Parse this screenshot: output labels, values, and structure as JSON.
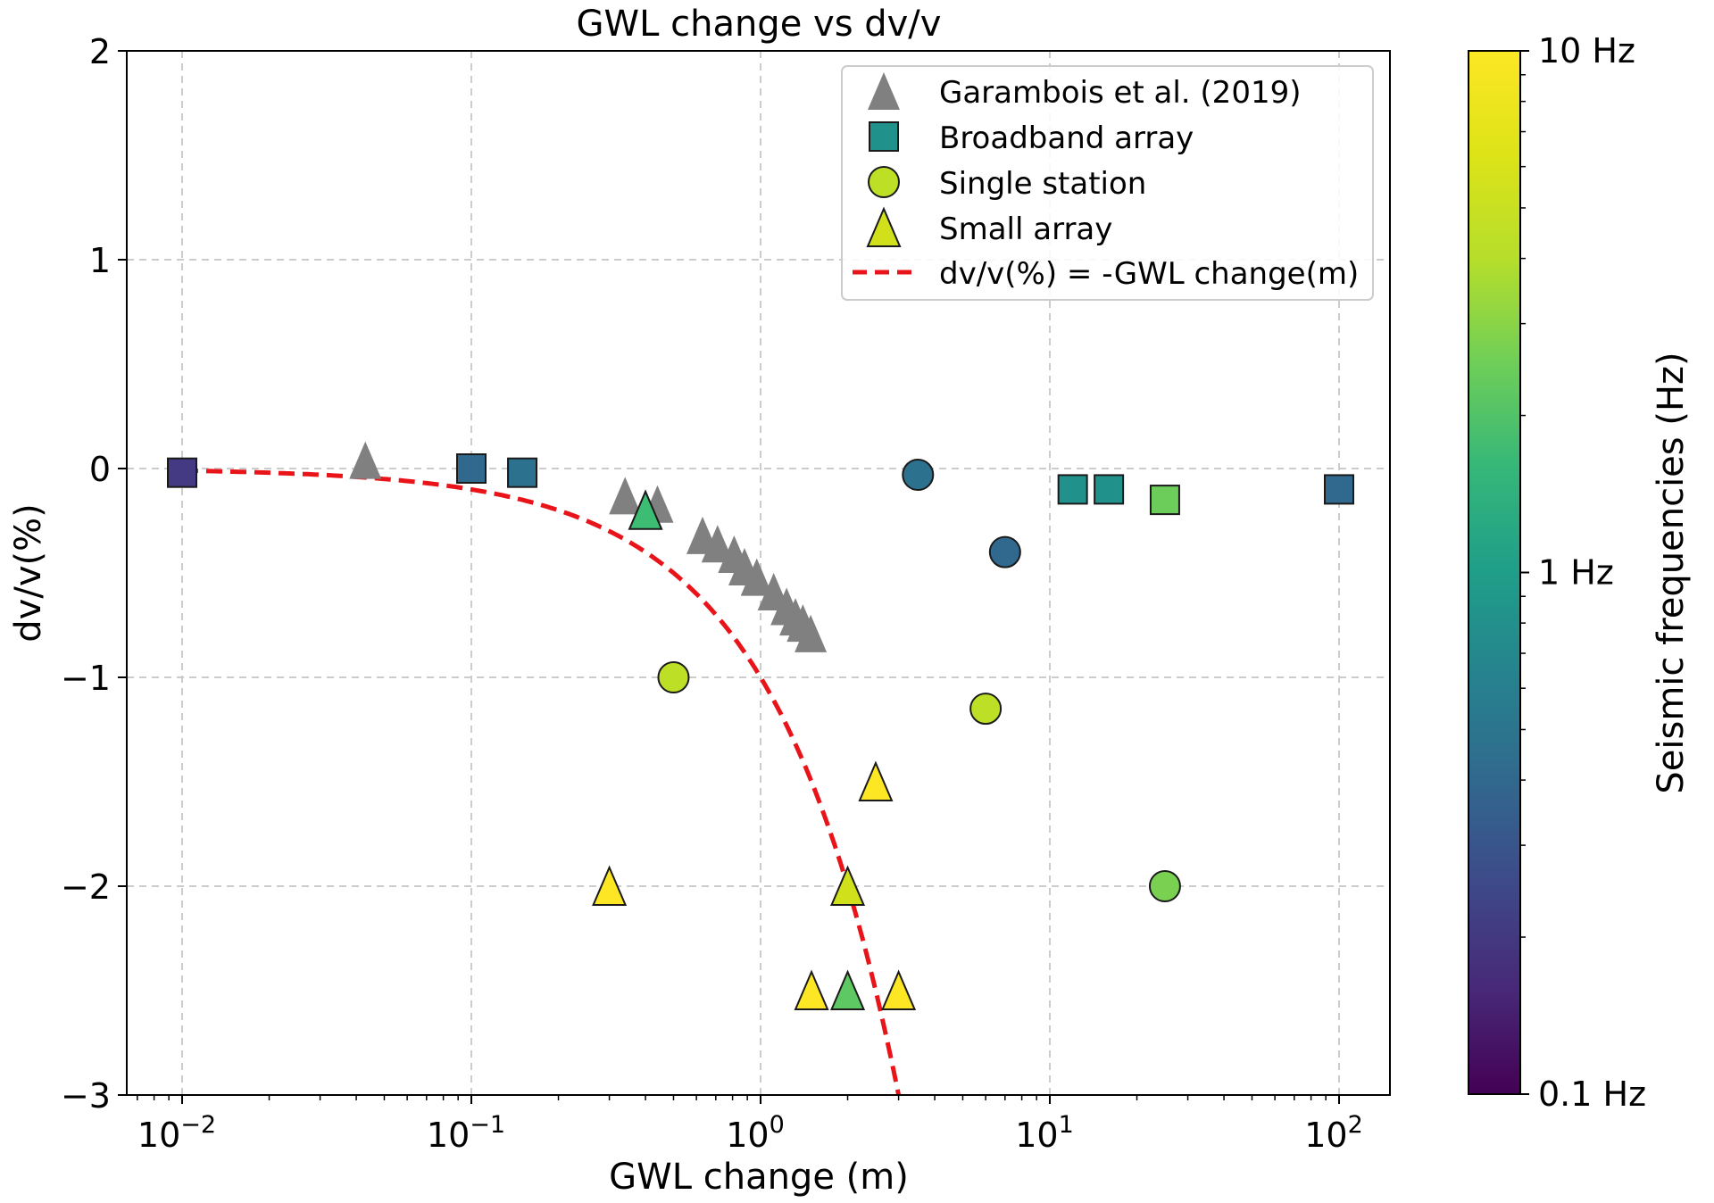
{
  "chart_data": {
    "type": "scatter",
    "title": "GWL change vs dv/v",
    "xlabel": "GWL change (m)",
    "ylabel": "dv/v(%)",
    "xscale": "log",
    "xlim": [
      0.0068,
      150
    ],
    "ylim": [
      -3,
      2
    ],
    "grid": true,
    "legend_placement": "top-right",
    "x_ticks": [
      {
        "value": 0.01,
        "base": "10",
        "exp": "−2"
      },
      {
        "value": 0.1,
        "base": "10",
        "exp": "−1"
      },
      {
        "value": 1,
        "base": "10",
        "exp": "0"
      },
      {
        "value": 10,
        "base": "10",
        "exp": "1"
      },
      {
        "value": 100,
        "base": "10",
        "exp": "2"
      }
    ],
    "y_ticks": [
      {
        "value": 2,
        "label": "2"
      },
      {
        "value": 1,
        "label": "1"
      },
      {
        "value": 0,
        "label": "0"
      },
      {
        "value": -1,
        "label": "−1"
      },
      {
        "value": -2,
        "label": "−2"
      },
      {
        "value": -3,
        "label": "−3"
      }
    ],
    "colorbar": {
      "label": "Seismic frequencies (Hz)",
      "scale": "log",
      "range": [
        0.1,
        10
      ],
      "colormap": "viridis",
      "ticks": [
        {
          "value": 10,
          "label": "10 Hz"
        },
        {
          "value": 1,
          "label": "1 Hz"
        },
        {
          "value": 0.1,
          "label": "0.1 Hz"
        }
      ]
    },
    "series": [
      {
        "name": "Garambois et al. (2019)",
        "marker": "triangle",
        "color": "#808080",
        "outlined": false,
        "points": [
          {
            "x": 0.043,
            "y": 0.04
          },
          {
            "x": 0.34,
            "y": -0.13
          },
          {
            "x": 0.44,
            "y": -0.17
          },
          {
            "x": 0.63,
            "y": -0.32
          },
          {
            "x": 0.71,
            "y": -0.36
          },
          {
            "x": 0.81,
            "y": -0.41
          },
          {
            "x": 0.88,
            "y": -0.47
          },
          {
            "x": 0.97,
            "y": -0.52
          },
          {
            "x": 1.11,
            "y": -0.59
          },
          {
            "x": 1.23,
            "y": -0.66
          },
          {
            "x": 1.32,
            "y": -0.71
          },
          {
            "x": 1.4,
            "y": -0.74
          },
          {
            "x": 1.49,
            "y": -0.79
          }
        ]
      },
      {
        "name": "Broadband array",
        "marker": "square",
        "legend_color": "#21918c",
        "outlined": true,
        "points": [
          {
            "x": 0.01,
            "y": -0.02,
            "freq_hz": 0.25,
            "color": "#443983"
          },
          {
            "x": 0.1,
            "y": 0.0,
            "freq_hz": 0.5,
            "color": "#31688e"
          },
          {
            "x": 0.15,
            "y": -0.02,
            "freq_hz": 0.6,
            "color": "#2c728e"
          },
          {
            "x": 12,
            "y": -0.1,
            "freq_hz": 1.0,
            "color": "#21918c"
          },
          {
            "x": 16,
            "y": -0.1,
            "freq_hz": 1.0,
            "color": "#21918c"
          },
          {
            "x": 25,
            "y": -0.15,
            "freq_hz": 4.0,
            "color": "#6ccd5a"
          },
          {
            "x": 100,
            "y": -0.1,
            "freq_hz": 0.5,
            "color": "#31688e"
          }
        ]
      },
      {
        "name": "Single station",
        "marker": "circle",
        "legend_color": "#bddf26",
        "outlined": true,
        "points": [
          {
            "x": 3.5,
            "y": -0.03,
            "freq_hz": 0.6,
            "color": "#2c728e"
          },
          {
            "x": 7.0,
            "y": -0.4,
            "freq_hz": 0.5,
            "color": "#31688e"
          },
          {
            "x": 0.5,
            "y": -1.0,
            "freq_hz": 7.0,
            "color": "#bddf26"
          },
          {
            "x": 6.0,
            "y": -1.15,
            "freq_hz": 7.0,
            "color": "#bddf26"
          },
          {
            "x": 25,
            "y": -2.0,
            "freq_hz": 4.5,
            "color": "#7ad151"
          }
        ]
      },
      {
        "name": "Small array",
        "marker": "triangle",
        "legend_color": "#d0e11c",
        "outlined": true,
        "points": [
          {
            "x": 0.4,
            "y": -0.2,
            "freq_hz": 2.5,
            "color": "#3dbc74"
          },
          {
            "x": 2.5,
            "y": -1.5,
            "freq_hz": 10,
            "color": "#fde725"
          },
          {
            "x": 0.3,
            "y": -2.0,
            "freq_hz": 10,
            "color": "#fde725"
          },
          {
            "x": 2.0,
            "y": -2.0,
            "freq_hz": 8,
            "color": "#d0e11c"
          },
          {
            "x": 1.5,
            "y": -2.5,
            "freq_hz": 10,
            "color": "#fde725"
          },
          {
            "x": 2.0,
            "y": -2.5,
            "freq_hz": 4,
            "color": "#5ec962"
          },
          {
            "x": 3.0,
            "y": -2.5,
            "freq_hz": 10,
            "color": "#fde725"
          }
        ]
      }
    ],
    "line": {
      "name": "dv/v(%) = -GWL change(m)",
      "style": "dashed",
      "color": "#e8141a",
      "equation": "y = -x",
      "x_range": [
        0.01,
        3.0
      ]
    }
  }
}
